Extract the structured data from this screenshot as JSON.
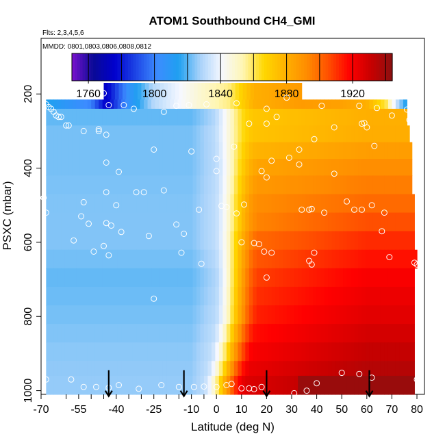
{
  "colors": {
    "ramp": [
      "#7a13ce",
      "#0a0a96",
      "#0000cd",
      "#1e46e6",
      "#3c8cff",
      "#1fa0f0",
      "#a8d2fa",
      "#f6f8ff",
      "#fff6b4",
      "#ffd700",
      "#ffb100",
      "#ff8c00",
      "#ff5000",
      "#ff0000",
      "#c80000",
      "#8b1010"
    ],
    "marker": "#ffffff",
    "arrow": "#000000"
  },
  "chart_data": {
    "type": "heatmap",
    "title": "ATOM1 Southbound CH4_GMI",
    "notes": {
      "flights": "Flts: 2,3,4,5,6",
      "dates": "MMDD: 0801,0803,0806,0808,0812"
    },
    "xlabel": "Latitude (deg N)",
    "ylabel": "PSXC (mbar)",
    "xlim": [
      -70,
      83
    ],
    "ylim": [
      1010,
      50
    ],
    "x_ticks": [
      -70,
      -55,
      -40,
      -25,
      -10,
      0,
      10,
      20,
      30,
      40,
      50,
      60,
      70,
      80
    ],
    "x_tick_labels": [
      "-70",
      "-55",
      "-40",
      "-25",
      "-10",
      "0",
      "10",
      "20",
      "30",
      "40",
      "50",
      "60",
      "70",
      "80"
    ],
    "x_minor_ticks": [
      -60,
      -50,
      -45,
      -35,
      -30,
      -20,
      -15,
      -5
    ],
    "y_ticks": [
      200,
      400,
      600,
      800,
      1000
    ],
    "y_tick_labels": [
      "200",
      "400",
      "600",
      "800",
      "1000"
    ],
    "colorbar": {
      "range": [
        1750,
        1944
      ],
      "boundaries": [
        1760,
        1780,
        1800,
        1820,
        1840,
        1860,
        1880,
        1900,
        1920,
        1940
      ],
      "ticks": [
        1760,
        1800,
        1840,
        1880,
        1920
      ],
      "tick_labels": [
        "1760",
        "1800",
        "1840",
        "1880",
        "1920"
      ]
    },
    "field": {
      "x_min": -68,
      "x_max": 79,
      "x_step": 1.5,
      "levels": [
        {
          "p_top": 170,
          "p_bot": 215,
          "lat_min": -45,
          "lat_max": 34
        },
        {
          "p_top": 215,
          "p_bot": 240,
          "lat_min": -68,
          "lat_max": 76
        },
        {
          "p_top": 240,
          "p_bot": 285,
          "lat_min": -68,
          "lat_max": 76
        },
        {
          "p_top": 285,
          "p_bot": 330,
          "lat_min": -68,
          "lat_max": 77
        },
        {
          "p_top": 330,
          "p_bot": 375,
          "lat_min": -68,
          "lat_max": 78
        },
        {
          "p_top": 375,
          "p_bot": 420,
          "lat_min": -68,
          "lat_max": 78
        },
        {
          "p_top": 420,
          "p_bot": 470,
          "lat_min": -68,
          "lat_max": 78
        },
        {
          "p_top": 470,
          "p_bot": 520,
          "lat_min": -68,
          "lat_max": 79
        },
        {
          "p_top": 520,
          "p_bot": 570,
          "lat_min": -68,
          "lat_max": 79
        },
        {
          "p_top": 570,
          "p_bot": 620,
          "lat_min": -68,
          "lat_max": 79
        },
        {
          "p_top": 620,
          "p_bot": 670,
          "lat_min": -68,
          "lat_max": 80
        },
        {
          "p_top": 670,
          "p_bot": 720,
          "lat_min": -68,
          "lat_max": 79
        },
        {
          "p_top": 720,
          "p_bot": 770,
          "lat_min": -68,
          "lat_max": 79
        },
        {
          "p_top": 770,
          "p_bot": 820,
          "lat_min": -68,
          "lat_max": 79
        },
        {
          "p_top": 820,
          "p_bot": 870,
          "lat_min": -68,
          "lat_max": 79
        },
        {
          "p_top": 870,
          "p_bot": 920,
          "lat_min": -68,
          "lat_max": 79
        },
        {
          "p_top": 920,
          "p_bot": 960,
          "lat_min": -68,
          "lat_max": 79
        },
        {
          "p_top": 960,
          "p_bot": 1010,
          "lat_min": -68,
          "lat_max": 79
        }
      ],
      "upper_trop": {
        "p_max": 240,
        "points": [
          [
            -68,
            1815
          ],
          [
            -50,
            1800
          ],
          [
            -44,
            1774
          ],
          [
            -35,
            1806
          ],
          [
            -25,
            1830
          ],
          [
            -5,
            1850
          ],
          [
            5,
            1857
          ],
          [
            15,
            1880
          ],
          [
            34,
            1887
          ],
          [
            50,
            1885
          ],
          [
            60,
            1880
          ],
          [
            68,
            1860
          ],
          [
            72,
            1832
          ],
          [
            76,
            1812
          ]
        ]
      },
      "profile_south": [
        [
          200,
          1818
        ],
        [
          300,
          1823
        ],
        [
          400,
          1823
        ],
        [
          500,
          1824
        ],
        [
          600,
          1824
        ],
        [
          700,
          1821
        ],
        [
          800,
          1823
        ],
        [
          900,
          1825
        ],
        [
          1000,
          1826
        ]
      ],
      "profile_north": [
        [
          240,
          1880
        ],
        [
          300,
          1880
        ],
        [
          400,
          1892
        ],
        [
          500,
          1900
        ],
        [
          600,
          1912
        ],
        [
          700,
          1920
        ],
        [
          800,
          1925
        ],
        [
          900,
          1932
        ],
        [
          1000,
          1940
        ]
      ],
      "front_lat": [
        [
          200,
          6
        ],
        [
          400,
          8
        ],
        [
          600,
          8
        ],
        [
          800,
          8
        ],
        [
          900,
          6
        ],
        [
          1000,
          3
        ]
      ],
      "front_width": 9,
      "south_blend_end": -10,
      "surface_arctic": {
        "p_min": 955,
        "lat_min": 33,
        "value": 1941
      }
    },
    "sample_points": [
      [
        -68,
        228
      ],
      [
        -67,
        235
      ],
      [
        -66,
        240
      ],
      [
        -65,
        248
      ],
      [
        -64,
        258
      ],
      [
        -63,
        262
      ],
      [
        -62,
        262
      ],
      [
        -60,
        285
      ],
      [
        -59,
        285
      ],
      [
        -53,
        300
      ],
      [
        -47,
        295
      ],
      [
        -45,
        198
      ],
      [
        -43,
        230
      ],
      [
        -37,
        230
      ],
      [
        -33,
        240
      ],
      [
        -21,
        248
      ],
      [
        -16,
        232
      ],
      [
        -11,
        230
      ],
      [
        -4,
        228
      ],
      [
        8,
        225
      ],
      [
        20,
        240
      ],
      [
        28,
        210
      ],
      [
        42,
        232
      ],
      [
        57,
        232
      ],
      [
        64,
        238
      ],
      [
        70,
        258
      ],
      [
        76,
        242
      ],
      [
        77,
        270
      ],
      [
        -47,
        300
      ],
      [
        -44,
        310
      ],
      [
        -25,
        350
      ],
      [
        -10,
        355
      ],
      [
        0,
        375
      ],
      [
        7,
        342
      ],
      [
        13,
        280
      ],
      [
        20,
        280
      ],
      [
        24,
        262
      ],
      [
        33,
        350
      ],
      [
        39,
        322
      ],
      [
        47,
        290
      ],
      [
        58,
        280
      ],
      [
        59,
        278
      ],
      [
        60,
        290
      ],
      [
        63,
        340
      ],
      [
        -44,
        385
      ],
      [
        -39,
        410
      ],
      [
        -32,
        465
      ],
      [
        -29,
        465
      ],
      [
        -21,
        460
      ],
      [
        -44,
        465
      ],
      [
        -40,
        500
      ],
      [
        -53,
        492
      ],
      [
        -69,
        480
      ],
      [
        -68,
        520
      ],
      [
        -54,
        530
      ],
      [
        -51,
        550
      ],
      [
        -44,
        548
      ],
      [
        -42,
        555
      ],
      [
        -38,
        572
      ],
      [
        -27,
        583
      ],
      [
        -16,
        552
      ],
      [
        -7,
        512
      ],
      [
        0,
        408
      ],
      [
        2,
        502
      ],
      [
        4,
        505
      ],
      [
        8,
        522
      ],
      [
        11,
        498
      ],
      [
        18,
        408
      ],
      [
        20,
        425
      ],
      [
        22,
        380
      ],
      [
        29,
        372
      ],
      [
        33,
        390
      ],
      [
        34,
        512
      ],
      [
        37,
        512
      ],
      [
        38,
        510
      ],
      [
        43,
        520
      ],
      [
        47,
        415
      ],
      [
        52,
        490
      ],
      [
        55,
        512
      ],
      [
        58,
        512
      ],
      [
        62,
        500
      ],
      [
        67,
        520
      ],
      [
        66,
        570
      ],
      [
        -57,
        595
      ],
      [
        -49,
        625
      ],
      [
        -45,
        610
      ],
      [
        -43,
        635
      ],
      [
        -14,
        628
      ],
      [
        -13,
        577
      ],
      [
        -6,
        658
      ],
      [
        10,
        600
      ],
      [
        15,
        602
      ],
      [
        17,
        605
      ],
      [
        22,
        628
      ],
      [
        19,
        625
      ],
      [
        20,
        695
      ],
      [
        37,
        650
      ],
      [
        38,
        660
      ],
      [
        39,
        628
      ],
      [
        69,
        640
      ],
      [
        79,
        655
      ],
      [
        80,
        660
      ],
      [
        -25,
        752
      ],
      [
        -68,
        970
      ],
      [
        -58,
        970
      ],
      [
        -53,
        990
      ],
      [
        -48,
        990
      ],
      [
        -43,
        992
      ],
      [
        -39,
        985
      ],
      [
        -31,
        995
      ],
      [
        -22,
        985
      ],
      [
        -15,
        990
      ],
      [
        -9,
        990
      ],
      [
        -5,
        989
      ],
      [
        0,
        990
      ],
      [
        4,
        985
      ],
      [
        6,
        982
      ],
      [
        10,
        994
      ],
      [
        13,
        994
      ],
      [
        15,
        996
      ],
      [
        18,
        990
      ],
      [
        31,
        1007
      ],
      [
        36,
        1000
      ],
      [
        40,
        980
      ],
      [
        50,
        952
      ],
      [
        57,
        955
      ],
      [
        62,
        965
      ],
      [
        80,
        970
      ]
    ],
    "flight_arrows": {
      "latitudes": [
        -43,
        -13,
        20,
        61
      ],
      "p_start": 945,
      "p_end": 1015
    }
  }
}
